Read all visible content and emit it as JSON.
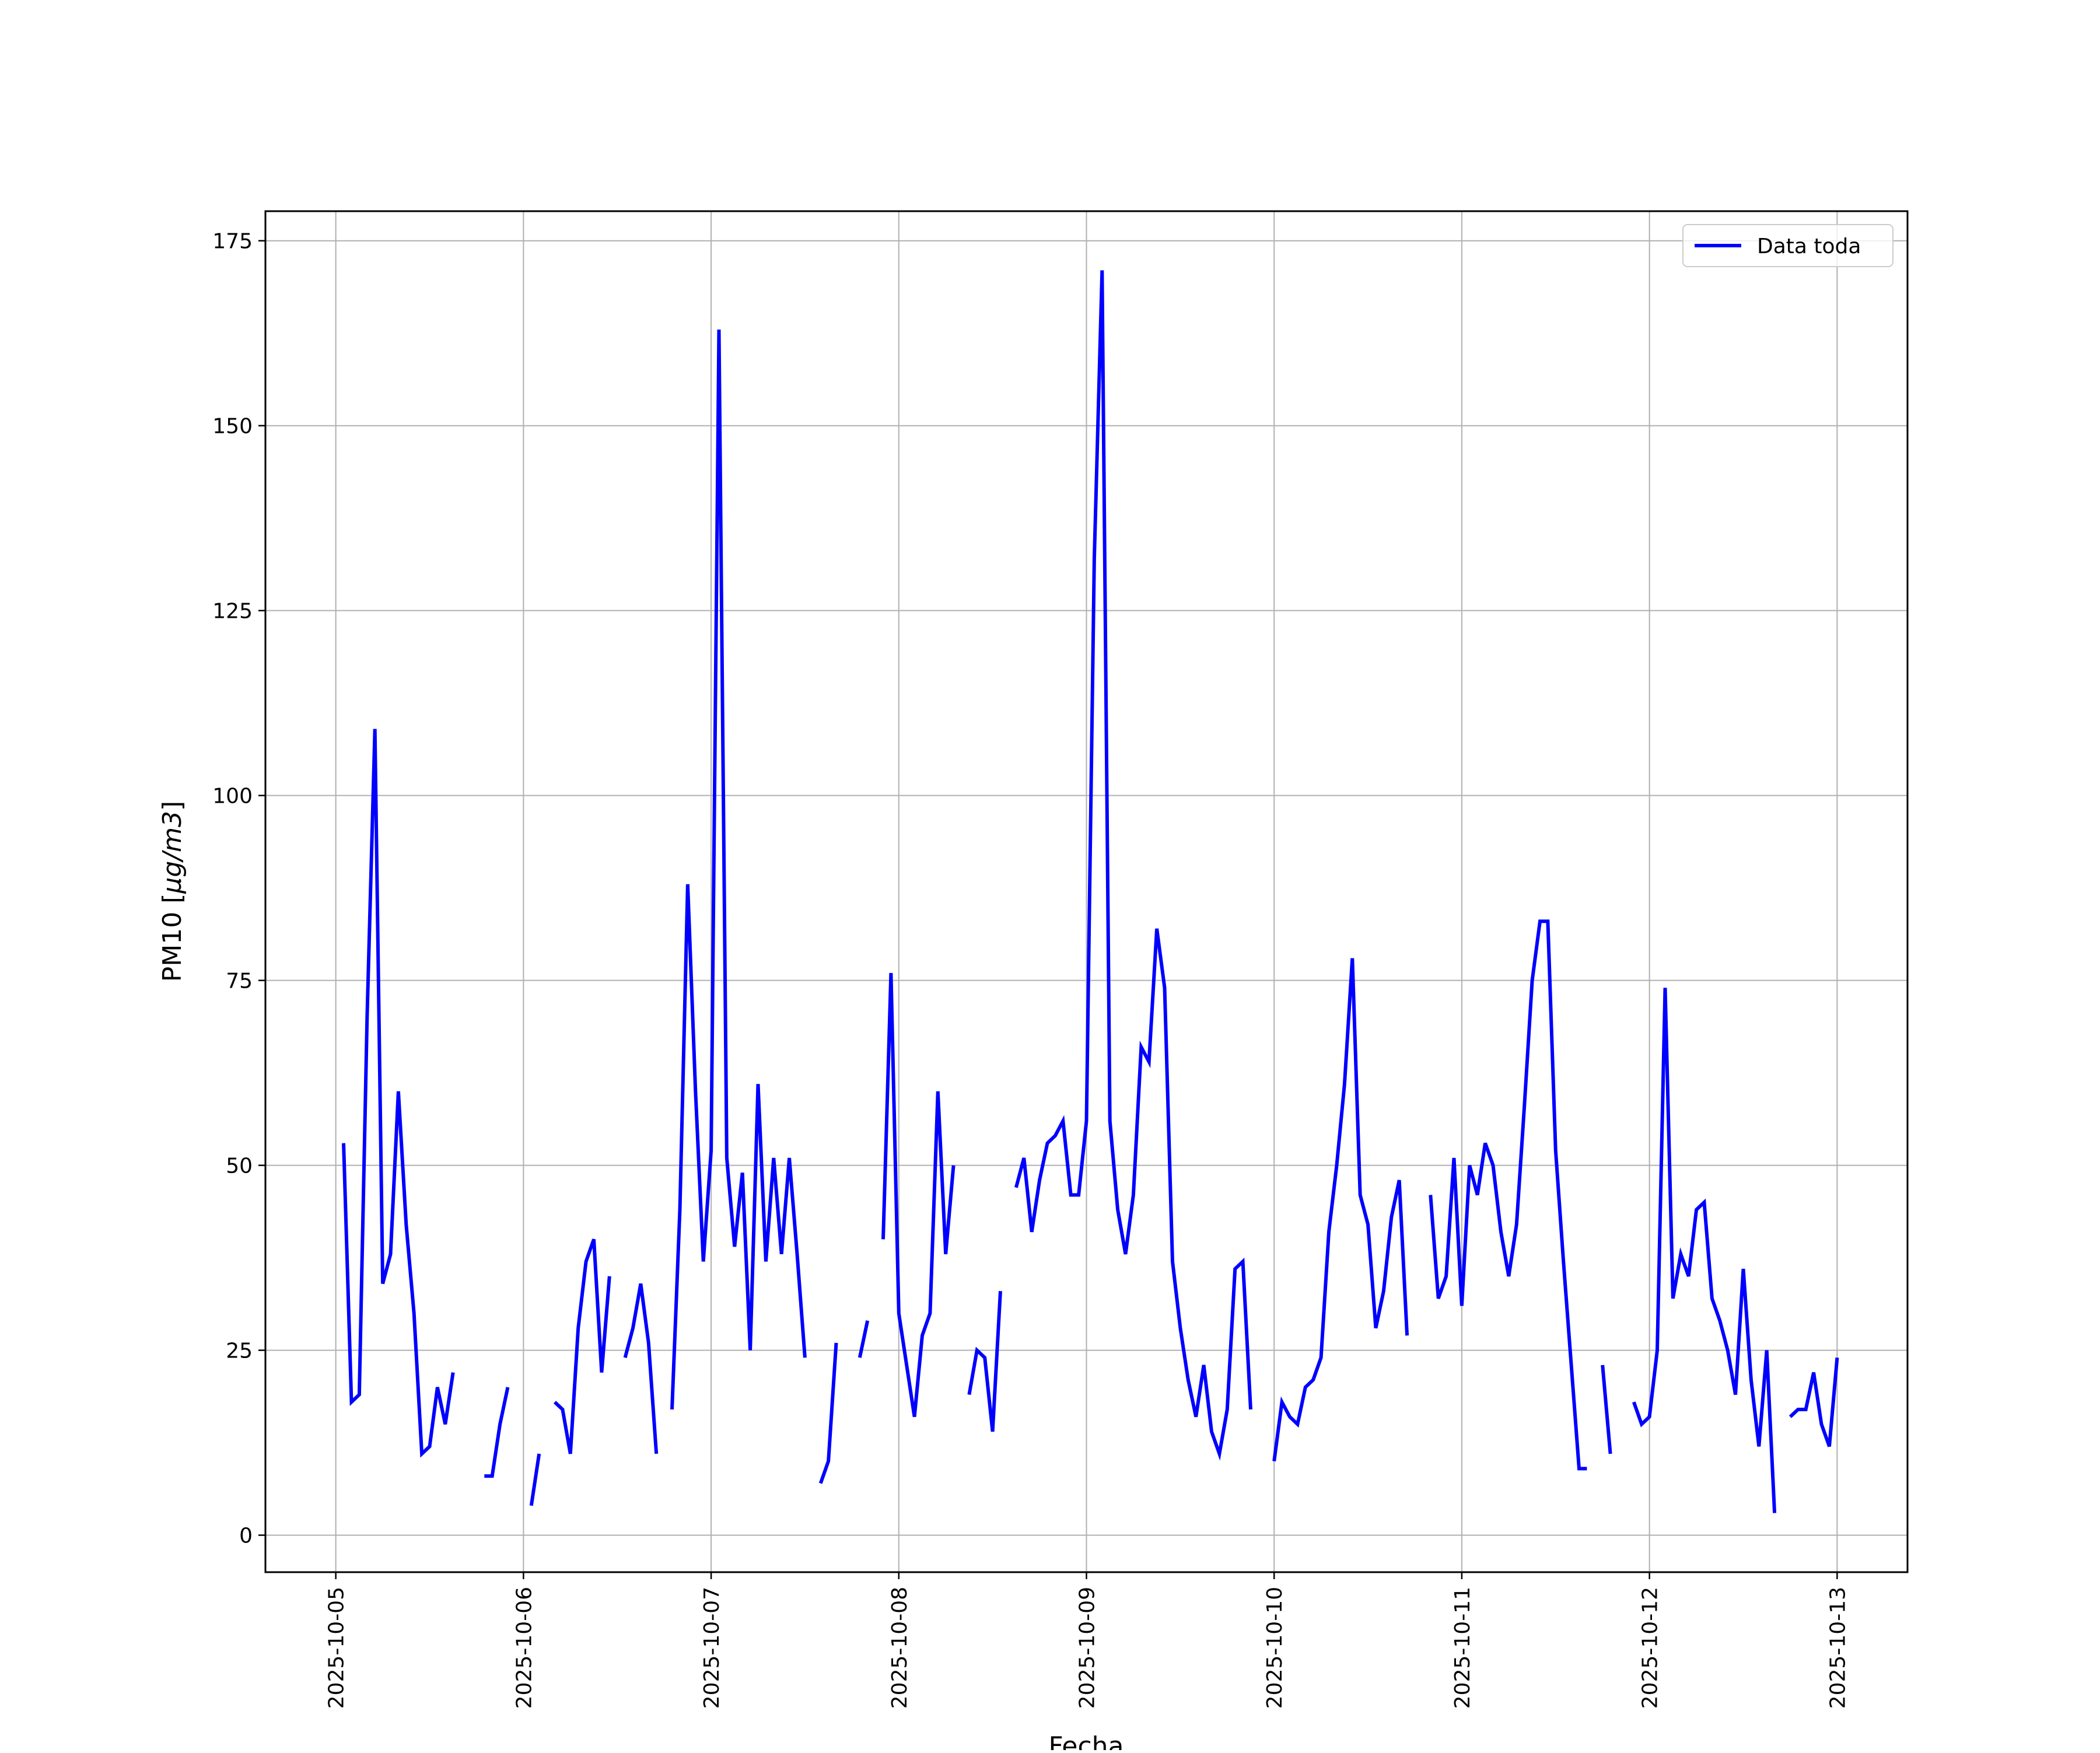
{
  "chart_data": {
    "type": "line",
    "xlabel": "Fecha",
    "ylabel": "PM10 [μg/m3]",
    "ylabel_parts": {
      "prefix": "PM10 [",
      "unit": "μg/m3",
      "suffix": "]"
    },
    "xlim": [
      "2025-10-04 15:00",
      "2025-10-13 09:00"
    ],
    "ylim": [
      -5,
      179
    ],
    "x_ticks": [
      "2025-10-05",
      "2025-10-06",
      "2025-10-07",
      "2025-10-08",
      "2025-10-09",
      "2025-10-10",
      "2025-10-11",
      "2025-10-12",
      "2025-10-13"
    ],
    "y_ticks": [
      0,
      25,
      50,
      75,
      100,
      125,
      150,
      175
    ],
    "grid": true,
    "legend": {
      "position": "top-right",
      "entries": [
        "Data toda"
      ]
    },
    "series": [
      {
        "name": "Data toda",
        "color": "#0000ff",
        "segments": [
          [
            [
              "2025-10-05 01:00",
              53
            ],
            [
              "2025-10-05 02:00",
              18
            ],
            [
              "2025-10-05 03:00",
              19
            ],
            [
              "2025-10-05 04:00",
              70
            ],
            [
              "2025-10-05 05:00",
              109
            ],
            [
              "2025-10-05 06:00",
              34
            ],
            [
              "2025-10-05 07:00",
              38
            ],
            [
              "2025-10-05 08:00",
              60
            ],
            [
              "2025-10-05 09:00",
              42
            ],
            [
              "2025-10-05 10:00",
              30
            ],
            [
              "2025-10-05 11:00",
              11
            ],
            [
              "2025-10-05 12:00",
              12
            ],
            [
              "2025-10-05 13:00",
              20
            ],
            [
              "2025-10-05 14:00",
              15
            ],
            [
              "2025-10-05 15:00",
              22
            ]
          ],
          [
            [
              "2025-10-05 19:00",
              8
            ],
            [
              "2025-10-05 20:00",
              8
            ],
            [
              "2025-10-05 21:00",
              15
            ],
            [
              "2025-10-05 22:00",
              20
            ]
          ],
          [
            [
              "2025-10-06 01:00",
              4
            ],
            [
              "2025-10-06 02:00",
              11
            ]
          ],
          [
            [
              "2025-10-06 04:00",
              18
            ],
            [
              "2025-10-06 05:00",
              17
            ],
            [
              "2025-10-06 06:00",
              11
            ],
            [
              "2025-10-06 07:00",
              28
            ],
            [
              "2025-10-06 08:00",
              37
            ],
            [
              "2025-10-06 09:00",
              40
            ],
            [
              "2025-10-06 10:00",
              22
            ],
            [
              "2025-10-06 11:00",
              35
            ]
          ],
          [
            [
              "2025-10-06 13:00",
              24
            ],
            [
              "2025-10-06 14:00",
              28
            ],
            [
              "2025-10-06 15:00",
              34
            ],
            [
              "2025-10-06 16:00",
              26
            ],
            [
              "2025-10-06 17:00",
              11
            ]
          ],
          [
            [
              "2025-10-06 19:00",
              17
            ],
            [
              "2025-10-06 20:00",
              44
            ],
            [
              "2025-10-06 21:00",
              88
            ],
            [
              "2025-10-06 22:00",
              60
            ],
            [
              "2025-10-06 23:00",
              37
            ],
            [
              "2025-10-07 00:00",
              52
            ],
            [
              "2025-10-07 01:00",
              163
            ],
            [
              "2025-10-07 02:00",
              51
            ],
            [
              "2025-10-07 03:00",
              39
            ],
            [
              "2025-10-07 04:00",
              49
            ],
            [
              "2025-10-07 05:00",
              25
            ],
            [
              "2025-10-07 06:00",
              61
            ],
            [
              "2025-10-07 07:00",
              37
            ],
            [
              "2025-10-07 08:00",
              51
            ],
            [
              "2025-10-07 09:00",
              38
            ],
            [
              "2025-10-07 10:00",
              51
            ],
            [
              "2025-10-07 11:00",
              38
            ],
            [
              "2025-10-07 12:00",
              24
            ]
          ],
          [
            [
              "2025-10-07 14:00",
              7
            ],
            [
              "2025-10-07 15:00",
              10
            ],
            [
              "2025-10-07 16:00",
              26
            ]
          ],
          [
            [
              "2025-10-07 19:00",
              24
            ],
            [
              "2025-10-07 20:00",
              29
            ]
          ],
          [
            [
              "2025-10-07 22:00",
              40
            ],
            [
              "2025-10-07 23:00",
              76
            ],
            [
              "2025-10-08 00:00",
              30
            ],
            [
              "2025-10-08 01:00",
              23
            ],
            [
              "2025-10-08 02:00",
              16
            ],
            [
              "2025-10-08 03:00",
              27
            ],
            [
              "2025-10-08 04:00",
              30
            ],
            [
              "2025-10-08 05:00",
              60
            ],
            [
              "2025-10-08 06:00",
              38
            ],
            [
              "2025-10-08 07:00",
              50
            ]
          ],
          [
            [
              "2025-10-08 09:00",
              19
            ],
            [
              "2025-10-08 10:00",
              25
            ],
            [
              "2025-10-08 11:00",
              24
            ],
            [
              "2025-10-08 12:00",
              14
            ],
            [
              "2025-10-08 13:00",
              33
            ]
          ],
          [
            [
              "2025-10-08 15:00",
              47
            ],
            [
              "2025-10-08 16:00",
              51
            ],
            [
              "2025-10-08 17:00",
              41
            ],
            [
              "2025-10-08 18:00",
              48
            ],
            [
              "2025-10-08 19:00",
              53
            ],
            [
              "2025-10-08 20:00",
              54
            ],
            [
              "2025-10-08 21:00",
              56
            ],
            [
              "2025-10-08 22:00",
              46
            ],
            [
              "2025-10-08 23:00",
              46
            ],
            [
              "2025-10-09 00:00",
              56
            ],
            [
              "2025-10-09 01:00",
              132
            ],
            [
              "2025-10-09 02:00",
              171
            ],
            [
              "2025-10-09 03:00",
              56
            ],
            [
              "2025-10-09 04:00",
              44
            ],
            [
              "2025-10-09 05:00",
              38
            ],
            [
              "2025-10-09 06:00",
              46
            ],
            [
              "2025-10-09 07:00",
              66
            ],
            [
              "2025-10-09 08:00",
              64
            ],
            [
              "2025-10-09 09:00",
              82
            ],
            [
              "2025-10-09 10:00",
              74
            ],
            [
              "2025-10-09 11:00",
              37
            ],
            [
              "2025-10-09 12:00",
              28
            ],
            [
              "2025-10-09 13:00",
              21
            ],
            [
              "2025-10-09 14:00",
              16
            ],
            [
              "2025-10-09 15:00",
              23
            ],
            [
              "2025-10-09 16:00",
              14
            ],
            [
              "2025-10-09 17:00",
              11
            ],
            [
              "2025-10-09 18:00",
              17
            ],
            [
              "2025-10-09 19:00",
              36
            ],
            [
              "2025-10-09 20:00",
              37
            ],
            [
              "2025-10-09 21:00",
              17
            ]
          ],
          [
            [
              "2025-10-10 00:00",
              10
            ],
            [
              "2025-10-10 01:00",
              18
            ],
            [
              "2025-10-10 02:00",
              16
            ],
            [
              "2025-10-10 03:00",
              15
            ],
            [
              "2025-10-10 04:00",
              20
            ],
            [
              "2025-10-10 05:00",
              21
            ],
            [
              "2025-10-10 06:00",
              24
            ],
            [
              "2025-10-10 07:00",
              41
            ],
            [
              "2025-10-10 08:00",
              50
            ],
            [
              "2025-10-10 09:00",
              61
            ],
            [
              "2025-10-10 10:00",
              78
            ],
            [
              "2025-10-10 11:00",
              46
            ],
            [
              "2025-10-10 12:00",
              42
            ],
            [
              "2025-10-10 13:00",
              28
            ],
            [
              "2025-10-10 14:00",
              33
            ],
            [
              "2025-10-10 15:00",
              43
            ],
            [
              "2025-10-10 16:00",
              48
            ],
            [
              "2025-10-10 17:00",
              27
            ]
          ],
          [
            [
              "2025-10-10 20:00",
              46
            ],
            [
              "2025-10-10 21:00",
              32
            ],
            [
              "2025-10-10 22:00",
              35
            ],
            [
              "2025-10-10 23:00",
              51
            ],
            [
              "2025-10-11 00:00",
              31
            ],
            [
              "2025-10-11 01:00",
              50
            ],
            [
              "2025-10-11 02:00",
              46
            ],
            [
              "2025-10-11 03:00",
              53
            ],
            [
              "2025-10-11 04:00",
              50
            ],
            [
              "2025-10-11 05:00",
              41
            ],
            [
              "2025-10-11 06:00",
              35
            ],
            [
              "2025-10-11 07:00",
              42
            ],
            [
              "2025-10-11 08:00",
              58
            ],
            [
              "2025-10-11 09:00",
              75
            ],
            [
              "2025-10-11 10:00",
              83
            ],
            [
              "2025-10-11 11:00",
              83
            ],
            [
              "2025-10-11 12:00",
              52
            ],
            [
              "2025-10-11 13:00",
              37
            ],
            [
              "2025-10-11 14:00",
              23
            ],
            [
              "2025-10-11 15:00",
              9
            ],
            [
              "2025-10-11 16:00",
              9
            ]
          ],
          [
            [
              "2025-10-11 18:00",
              23
            ],
            [
              "2025-10-11 19:00",
              11
            ]
          ],
          [
            [
              "2025-10-11 22:00",
              18
            ],
            [
              "2025-10-11 23:00",
              15
            ],
            [
              "2025-10-12 00:00",
              16
            ],
            [
              "2025-10-12 01:00",
              25
            ],
            [
              "2025-10-12 02:00",
              74
            ],
            [
              "2025-10-12 03:00",
              32
            ],
            [
              "2025-10-12 04:00",
              38
            ],
            [
              "2025-10-12 05:00",
              35
            ],
            [
              "2025-10-12 06:00",
              44
            ],
            [
              "2025-10-12 07:00",
              45
            ],
            [
              "2025-10-12 08:00",
              32
            ],
            [
              "2025-10-12 09:00",
              29
            ],
            [
              "2025-10-12 10:00",
              25
            ],
            [
              "2025-10-12 11:00",
              19
            ],
            [
              "2025-10-12 12:00",
              36
            ],
            [
              "2025-10-12 13:00",
              21
            ],
            [
              "2025-10-12 14:00",
              12
            ],
            [
              "2025-10-12 15:00",
              25
            ],
            [
              "2025-10-12 16:00",
              3
            ]
          ],
          [
            [
              "2025-10-12 18:00",
              16
            ],
            [
              "2025-10-12 19:00",
              17
            ],
            [
              "2025-10-12 20:00",
              17
            ],
            [
              "2025-10-12 21:00",
              22
            ],
            [
              "2025-10-12 22:00",
              15
            ],
            [
              "2025-10-12 23:00",
              12
            ],
            [
              "2025-10-13 00:00",
              24
            ]
          ]
        ]
      }
    ]
  }
}
